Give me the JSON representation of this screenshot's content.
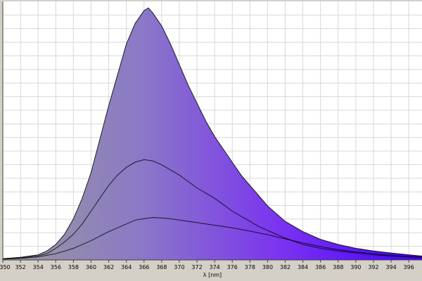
{
  "chart_data": {
    "type": "area",
    "xlabel": "λ [nm]",
    "ylabel": "",
    "xlim": [
      350,
      397.5
    ],
    "ylim": [
      0,
      1.0
    ],
    "x_ticks": [
      350,
      352,
      354,
      356,
      358,
      360,
      362,
      364,
      366,
      368,
      370,
      372,
      374,
      376,
      378,
      380,
      382,
      384,
      386,
      388,
      390,
      392,
      394,
      396
    ],
    "x_tick_labels": [
      "350",
      "352",
      "354",
      "356",
      "358",
      "360",
      "362",
      "364",
      "366",
      "368",
      "370",
      "372",
      "374",
      "376",
      "378",
      "380",
      "382",
      "384",
      "386",
      "388",
      "390",
      "392",
      "394",
      "396"
    ],
    "grid": true,
    "fill_gradient": [
      "#9a9a9a",
      "#8a78c8",
      "#7a32f0",
      "#4400ff"
    ],
    "series": [
      {
        "color": "#000000",
        "filled": true,
        "x": [
          350,
          352,
          354,
          355,
          356,
          357,
          358,
          359,
          360,
          361,
          362,
          363,
          364,
          365,
          366,
          366.5,
          367,
          368,
          369,
          370,
          371,
          372,
          373,
          374,
          375,
          376,
          377,
          378,
          379,
          380,
          382,
          384,
          386,
          388,
          390,
          392,
          394,
          396,
          397.5
        ],
        "y": [
          0.005,
          0.01,
          0.02,
          0.035,
          0.06,
          0.1,
          0.16,
          0.24,
          0.34,
          0.47,
          0.6,
          0.72,
          0.84,
          0.92,
          0.97,
          0.98,
          0.96,
          0.91,
          0.84,
          0.76,
          0.68,
          0.61,
          0.54,
          0.48,
          0.43,
          0.38,
          0.33,
          0.29,
          0.25,
          0.21,
          0.15,
          0.11,
          0.08,
          0.06,
          0.045,
          0.035,
          0.027,
          0.02,
          0.015
        ]
      },
      {
        "color": "#000000",
        "filled": false,
        "x": [
          350,
          352,
          354,
          355,
          356,
          357,
          358,
          359,
          360,
          361,
          362,
          363,
          364,
          365,
          366,
          367,
          368,
          369,
          370,
          371,
          372,
          373,
          374,
          375,
          376,
          377,
          378,
          379,
          380,
          382,
          384,
          386,
          388,
          390,
          392,
          394,
          396,
          397.5
        ],
        "y": [
          0.004,
          0.008,
          0.016,
          0.025,
          0.045,
          0.07,
          0.1,
          0.14,
          0.19,
          0.24,
          0.29,
          0.33,
          0.36,
          0.38,
          0.39,
          0.385,
          0.37,
          0.35,
          0.33,
          0.305,
          0.28,
          0.26,
          0.24,
          0.215,
          0.19,
          0.17,
          0.15,
          0.13,
          0.115,
          0.085,
          0.06,
          0.045,
          0.035,
          0.027,
          0.02,
          0.015,
          0.012,
          0.01
        ]
      },
      {
        "color": "#000000",
        "filled": false,
        "x": [
          350,
          352,
          354,
          356,
          358,
          360,
          362,
          364,
          365,
          366,
          367,
          368,
          369,
          370,
          372,
          374,
          376,
          378,
          380,
          382,
          384,
          386,
          388,
          390,
          392,
          394,
          396,
          397.5
        ],
        "y": [
          0.003,
          0.006,
          0.012,
          0.024,
          0.045,
          0.075,
          0.11,
          0.14,
          0.155,
          0.16,
          0.165,
          0.163,
          0.16,
          0.155,
          0.145,
          0.135,
          0.125,
          0.112,
          0.098,
          0.082,
          0.066,
          0.052,
          0.04,
          0.031,
          0.024,
          0.018,
          0.013,
          0.01
        ]
      }
    ]
  }
}
